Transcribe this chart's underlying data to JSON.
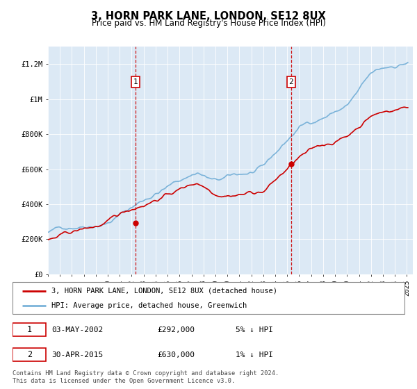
{
  "title": "3, HORN PARK LANE, LONDON, SE12 8UX",
  "subtitle": "Price paid vs. HM Land Registry's House Price Index (HPI)",
  "ylim": [
    0,
    1300000
  ],
  "xlim_start": 1995.0,
  "xlim_end": 2025.5,
  "yticks": [
    0,
    200000,
    400000,
    600000,
    800000,
    1000000,
    1200000
  ],
  "ytick_labels": [
    "£0",
    "£200K",
    "£400K",
    "£600K",
    "£800K",
    "£1M",
    "£1.2M"
  ],
  "xticks": [
    1995,
    1996,
    1997,
    1998,
    1999,
    2000,
    2001,
    2002,
    2003,
    2004,
    2005,
    2006,
    2007,
    2008,
    2009,
    2010,
    2011,
    2012,
    2013,
    2014,
    2015,
    2016,
    2017,
    2018,
    2019,
    2020,
    2021,
    2022,
    2023,
    2024,
    2025
  ],
  "hpi_color": "#7bb3d9",
  "property_color": "#cc0000",
  "marker1_x": 2002.33,
  "marker1_y": 292000,
  "marker2_x": 2015.33,
  "marker2_y": 630000,
  "marker1_label": "1",
  "marker2_label": "2",
  "legend_property": "3, HORN PARK LANE, LONDON, SE12 8UX (detached house)",
  "legend_hpi": "HPI: Average price, detached house, Greenwich",
  "annotation1_date": "03-MAY-2002",
  "annotation1_price": "£292,000",
  "annotation1_hpi": "5% ↓ HPI",
  "annotation2_date": "30-APR-2015",
  "annotation2_price": "£630,000",
  "annotation2_hpi": "1% ↓ HPI",
  "footer": "Contains HM Land Registry data © Crown copyright and database right 2024.\nThis data is licensed under the Open Government Licence v3.0.",
  "bg_color": "#dce9f5"
}
